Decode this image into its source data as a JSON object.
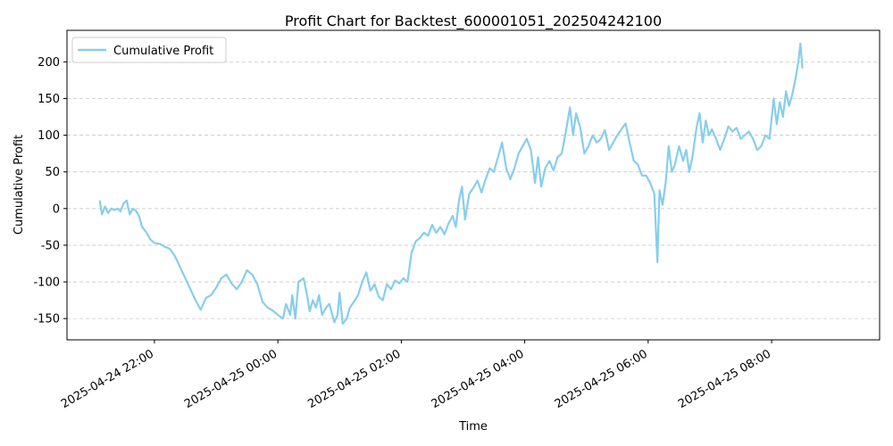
{
  "chart_data": {
    "type": "line",
    "title": "Profit Chart for Backtest_600001051_202504242100",
    "xlabel": "Time",
    "ylabel": "Cumulative Profit",
    "x_ticks": [
      "2025-04-24 22:00",
      "2025-04-25 00:00",
      "2025-04-25 02:00",
      "2025-04-25 04:00",
      "2025-04-25 06:00",
      "2025-04-25 08:00"
    ],
    "y_ticks": [
      -150,
      -100,
      -50,
      0,
      50,
      100,
      150,
      200
    ],
    "ylim": [
      -179,
      243
    ],
    "xlim": [
      "2025-04-24 20:35",
      "2025-04-25 09:45"
    ],
    "grid": "y-dashed",
    "legend_position": "upper-left",
    "series": [
      {
        "name": "Cumulative Profit",
        "color": "#87CEEB",
        "points": [
          [
            "2025-04-24 21:07",
            10
          ],
          [
            "2025-04-24 21:09",
            -8
          ],
          [
            "2025-04-24 21:12",
            3
          ],
          [
            "2025-04-24 21:15",
            -6
          ],
          [
            "2025-04-24 21:18",
            0
          ],
          [
            "2025-04-24 21:21",
            -2
          ],
          [
            "2025-04-24 21:24",
            0
          ],
          [
            "2025-04-24 21:27",
            -4
          ],
          [
            "2025-04-24 21:30",
            7
          ],
          [
            "2025-04-24 21:33",
            11
          ],
          [
            "2025-04-24 21:36",
            -8
          ],
          [
            "2025-04-24 21:39",
            0
          ],
          [
            "2025-04-24 21:42",
            -3
          ],
          [
            "2025-04-24 21:45",
            -10
          ],
          [
            "2025-04-24 21:48",
            -25
          ],
          [
            "2025-04-24 21:52",
            -32
          ],
          [
            "2025-04-24 21:56",
            -42
          ],
          [
            "2025-04-24 22:00",
            -47
          ],
          [
            "2025-04-24 22:05",
            -48
          ],
          [
            "2025-04-24 22:10",
            -52
          ],
          [
            "2025-04-24 22:15",
            -55
          ],
          [
            "2025-04-24 22:20",
            -65
          ],
          [
            "2025-04-24 22:25",
            -80
          ],
          [
            "2025-04-24 22:30",
            -95
          ],
          [
            "2025-04-24 22:35",
            -110
          ],
          [
            "2025-04-24 22:40",
            -125
          ],
          [
            "2025-04-24 22:45",
            -138
          ],
          [
            "2025-04-24 22:50",
            -122
          ],
          [
            "2025-04-24 22:55",
            -118
          ],
          [
            "2025-04-24 23:00",
            -108
          ],
          [
            "2025-04-24 23:05",
            -95
          ],
          [
            "2025-04-24 23:10",
            -90
          ],
          [
            "2025-04-24 23:15",
            -102
          ],
          [
            "2025-04-24 23:20",
            -110
          ],
          [
            "2025-04-24 23:25",
            -100
          ],
          [
            "2025-04-24 23:30",
            -84
          ],
          [
            "2025-04-24 23:35",
            -90
          ],
          [
            "2025-04-24 23:40",
            -103
          ],
          [
            "2025-04-24 23:45",
            -127
          ],
          [
            "2025-04-24 23:50",
            -135
          ],
          [
            "2025-04-24 23:55",
            -139
          ],
          [
            "2025-04-25 00:00",
            -145
          ],
          [
            "2025-04-25 00:05",
            -150
          ],
          [
            "2025-04-25 00:08",
            -130
          ],
          [
            "2025-04-25 00:12",
            -145
          ],
          [
            "2025-04-25 00:14",
            -118
          ],
          [
            "2025-04-25 00:17",
            -150
          ],
          [
            "2025-04-25 00:20",
            -100
          ],
          [
            "2025-04-25 00:25",
            -95
          ],
          [
            "2025-04-25 00:28",
            -115
          ],
          [
            "2025-04-25 00:31",
            -140
          ],
          [
            "2025-04-25 00:34",
            -125
          ],
          [
            "2025-04-25 00:37",
            -135
          ],
          [
            "2025-04-25 00:40",
            -118
          ],
          [
            "2025-04-25 00:43",
            -145
          ],
          [
            "2025-04-25 00:47",
            -135
          ],
          [
            "2025-04-25 00:50",
            -130
          ],
          [
            "2025-04-25 00:55",
            -155
          ],
          [
            "2025-04-25 00:58",
            -145
          ],
          [
            "2025-04-25 01:00",
            -115
          ],
          [
            "2025-04-25 01:03",
            -157
          ],
          [
            "2025-04-25 01:07",
            -150
          ],
          [
            "2025-04-25 01:10",
            -135
          ],
          [
            "2025-04-25 01:14",
            -127
          ],
          [
            "2025-04-25 01:18",
            -118
          ],
          [
            "2025-04-25 01:22",
            -100
          ],
          [
            "2025-04-25 01:26",
            -87
          ],
          [
            "2025-04-25 01:30",
            -112
          ],
          [
            "2025-04-25 01:34",
            -103
          ],
          [
            "2025-04-25 01:38",
            -120
          ],
          [
            "2025-04-25 01:42",
            -125
          ],
          [
            "2025-04-25 01:46",
            -103
          ],
          [
            "2025-04-25 01:50",
            -110
          ],
          [
            "2025-04-25 01:54",
            -98
          ],
          [
            "2025-04-25 01:58",
            -102
          ],
          [
            "2025-04-25 02:02",
            -95
          ],
          [
            "2025-04-25 02:06",
            -100
          ],
          [
            "2025-04-25 02:10",
            -60
          ],
          [
            "2025-04-25 02:14",
            -45
          ],
          [
            "2025-04-25 02:18",
            -40
          ],
          [
            "2025-04-25 02:22",
            -33
          ],
          [
            "2025-04-25 02:26",
            -37
          ],
          [
            "2025-04-25 02:30",
            -22
          ],
          [
            "2025-04-25 02:34",
            -33
          ],
          [
            "2025-04-25 02:38",
            -25
          ],
          [
            "2025-04-25 02:42",
            -35
          ],
          [
            "2025-04-25 02:46",
            -20
          ],
          [
            "2025-04-25 02:50",
            -10
          ],
          [
            "2025-04-25 02:53",
            -25
          ],
          [
            "2025-04-25 02:56",
            10
          ],
          [
            "2025-04-25 02:59",
            30
          ],
          [
            "2025-04-25 03:02",
            -15
          ],
          [
            "2025-04-25 03:06",
            20
          ],
          [
            "2025-04-25 03:10",
            28
          ],
          [
            "2025-04-25 03:14",
            38
          ],
          [
            "2025-04-25 03:18",
            22
          ],
          [
            "2025-04-25 03:22",
            40
          ],
          [
            "2025-04-25 03:26",
            55
          ],
          [
            "2025-04-25 03:30",
            50
          ],
          [
            "2025-04-25 03:34",
            70
          ],
          [
            "2025-04-25 03:38",
            90
          ],
          [
            "2025-04-25 03:42",
            55
          ],
          [
            "2025-04-25 03:46",
            40
          ],
          [
            "2025-04-25 03:50",
            55
          ],
          [
            "2025-04-25 03:54",
            75
          ],
          [
            "2025-04-25 03:58",
            85
          ],
          [
            "2025-04-25 04:02",
            95
          ],
          [
            "2025-04-25 04:06",
            80
          ],
          [
            "2025-04-25 04:10",
            35
          ],
          [
            "2025-04-25 04:13",
            70
          ],
          [
            "2025-04-25 04:16",
            30
          ],
          [
            "2025-04-25 04:20",
            55
          ],
          [
            "2025-04-25 04:24",
            65
          ],
          [
            "2025-04-25 04:28",
            52
          ],
          [
            "2025-04-25 04:32",
            70
          ],
          [
            "2025-04-25 04:36",
            75
          ],
          [
            "2025-04-25 04:40",
            105
          ],
          [
            "2025-04-25 04:44",
            138
          ],
          [
            "2025-04-25 04:47",
            100
          ],
          [
            "2025-04-25 04:50",
            130
          ],
          [
            "2025-04-25 04:54",
            110
          ],
          [
            "2025-04-25 04:58",
            75
          ],
          [
            "2025-04-25 05:02",
            85
          ],
          [
            "2025-04-25 05:06",
            100
          ],
          [
            "2025-04-25 05:10",
            90
          ],
          [
            "2025-04-25 05:14",
            95
          ],
          [
            "2025-04-25 05:18",
            107
          ],
          [
            "2025-04-25 05:22",
            80
          ],
          [
            "2025-04-25 05:26",
            90
          ],
          [
            "2025-04-25 05:30",
            100
          ],
          [
            "2025-04-25 05:34",
            108
          ],
          [
            "2025-04-25 05:38",
            116
          ],
          [
            "2025-04-25 05:42",
            90
          ],
          [
            "2025-04-25 05:46",
            65
          ],
          [
            "2025-04-25 05:50",
            60
          ],
          [
            "2025-04-25 05:54",
            45
          ],
          [
            "2025-04-25 05:58",
            45
          ],
          [
            "2025-04-25 06:02",
            35
          ],
          [
            "2025-04-25 06:06",
            20
          ],
          [
            "2025-04-25 06:09",
            -73
          ],
          [
            "2025-04-25 06:11",
            25
          ],
          [
            "2025-04-25 06:14",
            5
          ],
          [
            "2025-04-25 06:17",
            35
          ],
          [
            "2025-04-25 06:20",
            85
          ],
          [
            "2025-04-25 06:23",
            50
          ],
          [
            "2025-04-25 06:26",
            60
          ],
          [
            "2025-04-25 06:30",
            85
          ],
          [
            "2025-04-25 06:34",
            65
          ],
          [
            "2025-04-25 06:37",
            80
          ],
          [
            "2025-04-25 06:40",
            50
          ],
          [
            "2025-04-25 06:43",
            70
          ],
          [
            "2025-04-25 06:47",
            110
          ],
          [
            "2025-04-25 06:50",
            130
          ],
          [
            "2025-04-25 06:53",
            90
          ],
          [
            "2025-04-25 06:56",
            120
          ],
          [
            "2025-04-25 06:59",
            100
          ],
          [
            "2025-04-25 07:02",
            108
          ],
          [
            "2025-04-25 07:06",
            95
          ],
          [
            "2025-04-25 07:10",
            80
          ],
          [
            "2025-04-25 07:14",
            95
          ],
          [
            "2025-04-25 07:18",
            112
          ],
          [
            "2025-04-25 07:22",
            105
          ],
          [
            "2025-04-25 07:26",
            110
          ],
          [
            "2025-04-25 07:30",
            95
          ],
          [
            "2025-04-25 07:34",
            100
          ],
          [
            "2025-04-25 07:38",
            105
          ],
          [
            "2025-04-25 07:42",
            95
          ],
          [
            "2025-04-25 07:46",
            80
          ],
          [
            "2025-04-25 07:50",
            85
          ],
          [
            "2025-04-25 07:54",
            100
          ],
          [
            "2025-04-25 07:58",
            95
          ],
          [
            "2025-04-25 08:02",
            150
          ],
          [
            "2025-04-25 08:05",
            115
          ],
          [
            "2025-04-25 08:08",
            145
          ],
          [
            "2025-04-25 08:11",
            125
          ],
          [
            "2025-04-25 08:14",
            160
          ],
          [
            "2025-04-25 08:17",
            140
          ],
          [
            "2025-04-25 08:20",
            155
          ],
          [
            "2025-04-25 08:23",
            175
          ],
          [
            "2025-04-25 08:26",
            200
          ],
          [
            "2025-04-25 08:28",
            225
          ],
          [
            "2025-04-25 08:30",
            192
          ]
        ]
      }
    ]
  }
}
